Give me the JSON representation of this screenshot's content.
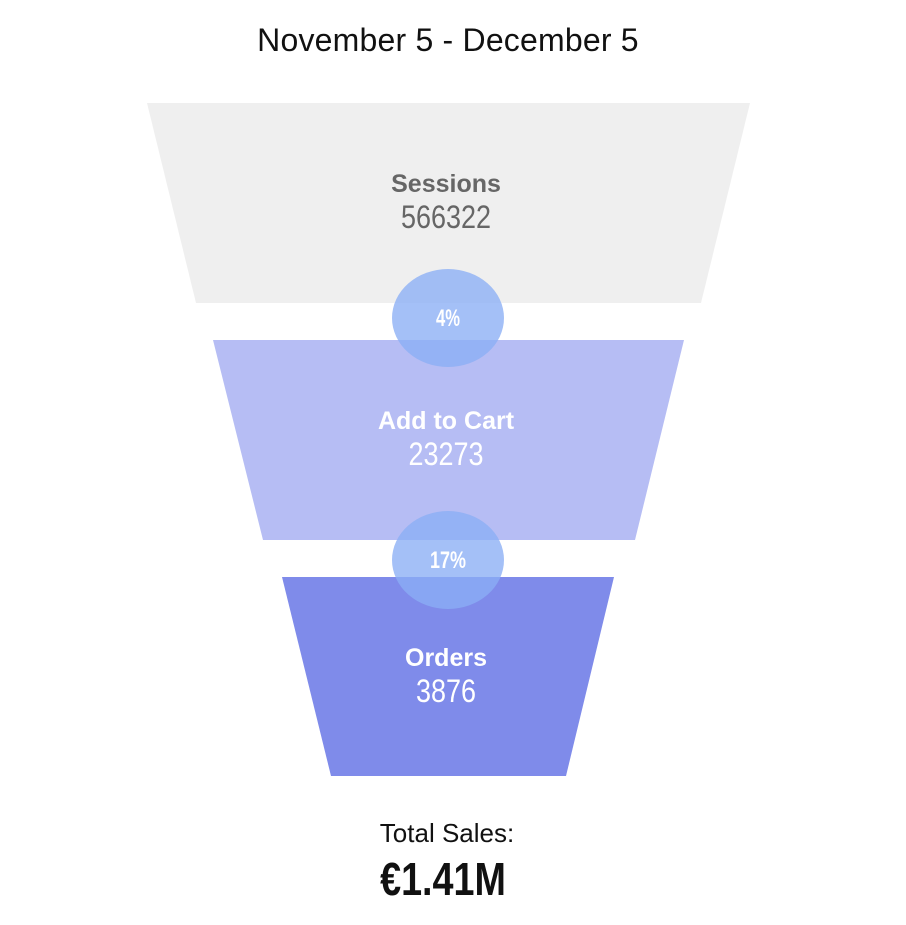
{
  "chart_data": {
    "type": "funnel",
    "title": "November 5 - December 5",
    "stages": [
      {
        "name": "Sessions",
        "value": 566322,
        "color": "#efefef",
        "text_color": "#666666"
      },
      {
        "name": "Add to Cart",
        "value": 23273,
        "color": "#b6bdf4",
        "text_color": "#ffffff"
      },
      {
        "name": "Orders",
        "value": 3876,
        "color": "#7f8bea",
        "text_color": "#ffffff"
      }
    ],
    "conversions": [
      {
        "label": "4%"
      },
      {
        "label": "17%"
      }
    ],
    "conversion_color": "#8aaef5",
    "total": {
      "label": "Total Sales:",
      "value": "€1.41M"
    }
  }
}
